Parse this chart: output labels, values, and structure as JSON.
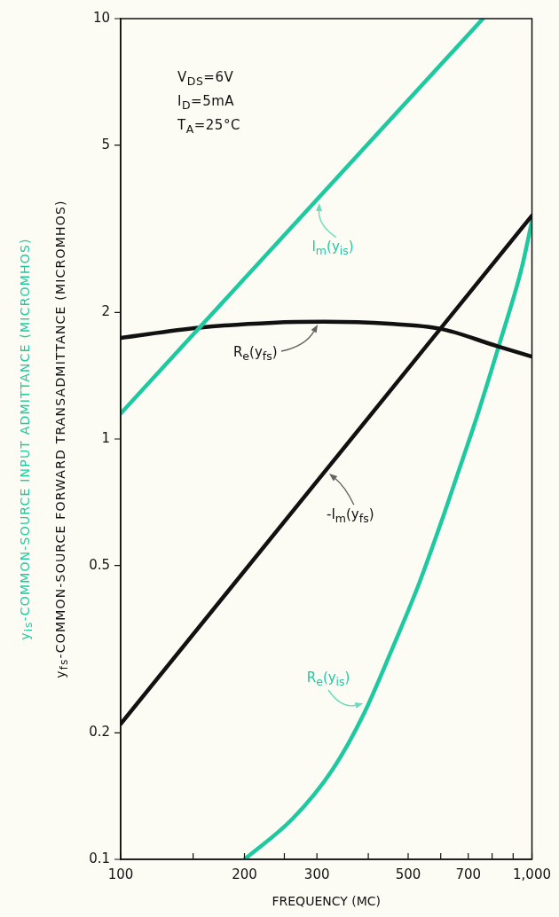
{
  "chart_data": {
    "type": "line",
    "xlabel": "FREQUENCY (MC)",
    "ylabel": "y$_{fs}$-COMMON-SOURCE FORWARD TRANSADMITTANCE (MICROMHOS)",
    "y2label": "y$_{is}$-COMMON-SOURCE INPUT ADMITTANCE (MICROMHOS)",
    "annotations": [
      "V$_{DS}$=6V",
      "I$_{D}$=5mA",
      "T$_{A}$=25°C"
    ],
    "log": "xy",
    "marker": "none",
    "xlim": [
      100,
      1000
    ],
    "ylim": [
      0.1,
      10
    ],
    "xticks": [
      100,
      {
        "value": 150,
        "label": null
      },
      200,
      {
        "value": 250,
        "label": null
      },
      300,
      {
        "value": 400,
        "label": null
      },
      500,
      {
        "value": 600,
        "label": null
      },
      700,
      {
        "value": 800,
        "label": null
      },
      {
        "value": 900,
        "label": null
      },
      {
        "value": 1000,
        "label": "1,000"
      }
    ],
    "yticks": [
      0.1,
      0.2,
      0.5,
      1,
      2,
      5,
      10
    ],
    "series": [
      {
        "name": "I$_{m}$(y$_{is}$)",
        "color": "#1fc9a0",
        "x": [
          100,
          760
        ],
        "values": [
          1.15,
          10
        ]
      },
      {
        "name": "R$_{e}$(y$_{fs}$)",
        "color": "#111111",
        "x": [
          100,
          155,
          234,
          312,
          450,
          598,
          827,
          1000
        ],
        "values": [
          1.74,
          1.84,
          1.89,
          1.9,
          1.88,
          1.83,
          1.66,
          1.57
        ]
      },
      {
        "name": "-I$_{m}$(y$_{fs}$)",
        "color": "#111111",
        "x": [
          100,
          1000
        ],
        "values": [
          0.21,
          3.4
        ]
      },
      {
        "name": "R$_{e}$(y$_{is}$)",
        "color": "#1fc9a0",
        "x": [
          200,
          262,
          328,
          391,
          456,
          531,
          607,
          677,
          739,
          833,
          944,
          1000
        ],
        "values": [
          0.1,
          0.125,
          0.164,
          0.223,
          0.315,
          0.452,
          0.65,
          0.89,
          1.15,
          1.68,
          2.55,
          3.3
        ]
      }
    ]
  }
}
